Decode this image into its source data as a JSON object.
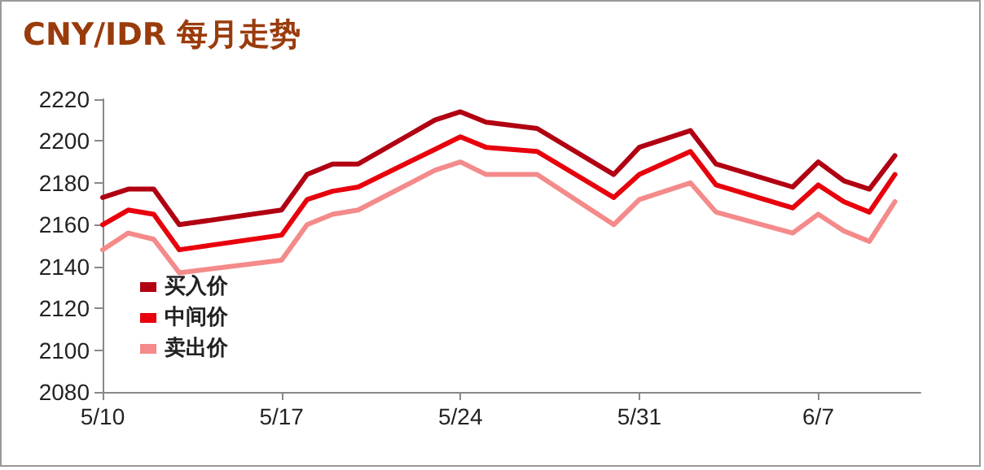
{
  "chart_data": {
    "type": "line",
    "title": "CNY/IDR 每月走势",
    "x": [
      "--05-10",
      "--05-11",
      "--05-12",
      "--05-13",
      "--05-17",
      "--05-18",
      "--05-19",
      "--05-20",
      "--05-23",
      "--05-24",
      "--05-25",
      "--05-27",
      "--05-30",
      "--05-31",
      "--06-02",
      "--06-03",
      "--06-06",
      "--06-07",
      "--06-08",
      "--06-09",
      "--06-10"
    ],
    "series": [
      {
        "name": "买入价",
        "color": "#b00012",
        "values": [
          2173,
          2177,
          2177,
          2160,
          2167,
          2184,
          2189,
          2189,
          2210,
          2214,
          2209,
          2206,
          2184,
          2197,
          2205,
          2189,
          2178,
          2190,
          2181,
          2177,
          2193
        ]
      },
      {
        "name": "中间价",
        "color": "#e8000c",
        "values": [
          2160,
          2167,
          2165,
          2148,
          2155,
          2172,
          2176,
          2178,
          2196,
          2202,
          2197,
          2195,
          2173,
          2184,
          2195,
          2179,
          2168,
          2179,
          2171,
          2166,
          2184
        ]
      },
      {
        "name": "卖出价",
        "color": "#f48a8a",
        "values": [
          2148,
          2156,
          2153,
          2137,
          2143,
          2160,
          2165,
          2167,
          2186,
          2190,
          2184,
          2184,
          2160,
          2172,
          2180,
          2166,
          2156,
          2165,
          2157,
          2152,
          2171
        ]
      }
    ],
    "xlim": [
      "--05-10",
      "--06-11"
    ],
    "xticks": [
      {
        "value": "--05-10",
        "label": "5/10"
      },
      {
        "value": "--05-17",
        "label": "5/17"
      },
      {
        "value": "--05-24",
        "label": "5/24"
      },
      {
        "value": "--05-31",
        "label": "5/31"
      },
      {
        "value": "--06-07",
        "label": "6/7"
      }
    ],
    "ylim": [
      2080,
      2220
    ],
    "yticks": [
      2080,
      2100,
      2120,
      2140,
      2160,
      2180,
      2200,
      2220
    ],
    "grid": false,
    "legend": "bottom left",
    "marker": "none",
    "line_style": "solid"
  }
}
